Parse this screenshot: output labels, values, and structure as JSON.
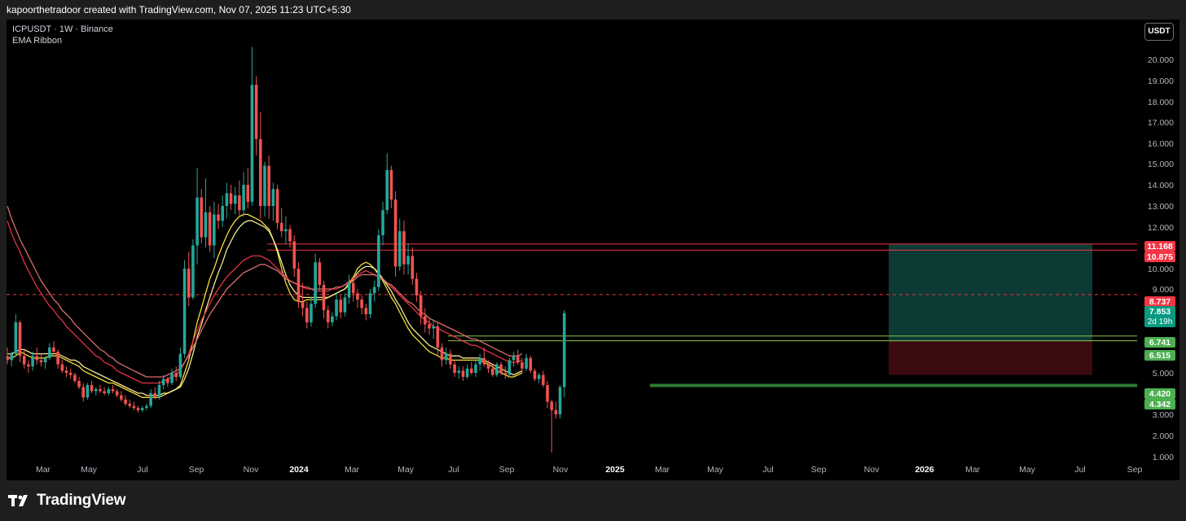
{
  "header": {
    "attribution": "kapoorthetradoor created with TradingView.com, Nov 07, 2025 11:23 UTC+5:30"
  },
  "legend": {
    "symbol_line": "ICPUSDT · 1W · Binance",
    "indicator": "EMA Ribbon"
  },
  "unit_button": "USDT",
  "footer": {
    "brand": "TradingView"
  },
  "colors": {
    "up": "#26a69a",
    "down": "#ef5350",
    "ema_fast": "#ffeb3b",
    "ema_fast2": "#fff59d",
    "ema_slow": "#f23645",
    "ema_slow2": "#e57373",
    "level_red": "#f23645",
    "level_green": "#4caf50",
    "target_zone": "#0c3a34",
    "stop_zone": "#3b0b10",
    "support_band": "#2e7d32"
  },
  "chart_data": {
    "type": "candlestick",
    "symbol": "ICPUSDT",
    "timeframe": "1W",
    "exchange": "Binance",
    "y_ticks": [
      20,
      19,
      18,
      17,
      16,
      15,
      14,
      13,
      12,
      11,
      10,
      9,
      5,
      3,
      2,
      1
    ],
    "y_tick_labels": [
      "20.000",
      "19.000",
      "18.000",
      "17.000",
      "16.000",
      "15.000",
      "14.000",
      "13.000",
      "12.000",
      "11.000",
      "10.000",
      "9.000",
      "5.000",
      "3.000",
      "2.000",
      "1.000"
    ],
    "x_ticks": [
      "Mar",
      "May",
      "Jul",
      "Sep",
      "Nov",
      "2024",
      "Mar",
      "May",
      "Jul",
      "Sep",
      "Nov",
      "2025",
      "Mar",
      "May",
      "Jul",
      "Sep",
      "Nov",
      "2026",
      "Mar",
      "May",
      "Jul",
      "Sep"
    ],
    "x_bold": [
      false,
      false,
      false,
      false,
      false,
      true,
      false,
      false,
      false,
      false,
      false,
      true,
      false,
      false,
      false,
      false,
      false,
      true,
      false,
      false,
      false,
      false
    ],
    "price_labels": [
      {
        "text": "11.168",
        "kind": "red"
      },
      {
        "text": "10.875",
        "kind": "red"
      },
      {
        "text": "8.737",
        "kind": "red"
      },
      {
        "text": "7.853",
        "sub": "2d 19h",
        "kind": "teal"
      },
      {
        "text": "6.741",
        "kind": "green"
      },
      {
        "text": "6.515",
        "kind": "green"
      },
      {
        "text": "4.420",
        "kind": "green"
      },
      {
        "text": "4.342",
        "kind": "green"
      }
    ],
    "levels": {
      "resistance": [
        11.168,
        10.875
      ],
      "dashed": 8.737,
      "mid": [
        6.741,
        6.515
      ],
      "support": [
        4.42,
        4.342
      ]
    },
    "position": {
      "entry": 6.515,
      "target": 11.168,
      "stop": 4.9
    },
    "candles": [
      [
        5.8,
        6.2,
        5.4,
        5.6
      ],
      [
        5.6,
        6.0,
        5.3,
        5.9
      ],
      [
        5.9,
        7.8,
        5.8,
        7.4
      ],
      [
        7.4,
        7.5,
        5.5,
        5.8
      ],
      [
        5.8,
        6.1,
        5.2,
        5.4
      ],
      [
        5.4,
        5.6,
        5.0,
        5.3
      ],
      [
        5.3,
        6.0,
        5.1,
        5.8
      ],
      [
        5.8,
        6.2,
        5.4,
        5.6
      ],
      [
        5.6,
        5.9,
        5.3,
        5.5
      ],
      [
        5.5,
        5.8,
        5.2,
        5.7
      ],
      [
        5.7,
        6.4,
        5.6,
        6.2
      ],
      [
        6.2,
        6.5,
        5.9,
        6.0
      ],
      [
        6.0,
        6.1,
        5.2,
        5.4
      ],
      [
        5.4,
        5.6,
        5.0,
        5.1
      ],
      [
        5.1,
        5.3,
        4.8,
        5.0
      ],
      [
        5.0,
        5.2,
        4.7,
        4.9
      ],
      [
        4.9,
        5.0,
        4.5,
        4.6
      ],
      [
        4.6,
        4.8,
        4.2,
        4.3
      ],
      [
        4.3,
        4.5,
        3.6,
        3.8
      ],
      [
        3.8,
        4.5,
        3.7,
        4.4
      ],
      [
        4.4,
        4.6,
        4.0,
        4.1
      ],
      [
        4.1,
        4.3,
        3.9,
        4.2
      ],
      [
        4.2,
        4.4,
        4.0,
        4.1
      ],
      [
        4.1,
        4.3,
        3.9,
        4.0
      ],
      [
        4.0,
        4.3,
        3.9,
        4.2
      ],
      [
        4.2,
        4.4,
        4.0,
        4.1
      ],
      [
        4.1,
        4.2,
        3.8,
        3.9
      ],
      [
        3.9,
        4.1,
        3.6,
        3.7
      ],
      [
        3.7,
        3.9,
        3.4,
        3.5
      ],
      [
        3.5,
        3.7,
        3.3,
        3.4
      ],
      [
        3.4,
        3.6,
        3.2,
        3.3
      ],
      [
        3.3,
        3.4,
        3.1,
        3.2
      ],
      [
        3.2,
        3.4,
        3.1,
        3.3
      ],
      [
        3.3,
        3.5,
        3.2,
        3.4
      ],
      [
        3.4,
        4.2,
        3.3,
        4.0
      ],
      [
        4.0,
        4.3,
        3.7,
        3.8
      ],
      [
        3.8,
        4.6,
        3.7,
        4.4
      ],
      [
        4.4,
        4.9,
        4.2,
        4.7
      ],
      [
        4.7,
        4.8,
        4.3,
        4.5
      ],
      [
        4.5,
        5.2,
        4.4,
        5.0
      ],
      [
        5.0,
        5.3,
        4.6,
        4.8
      ],
      [
        4.8,
        6.2,
        4.7,
        5.9
      ],
      [
        5.9,
        10.4,
        5.7,
        10.0
      ],
      [
        10.0,
        10.8,
        8.2,
        8.6
      ],
      [
        8.6,
        11.4,
        8.5,
        11.1
      ],
      [
        11.1,
        14.8,
        10.2,
        13.4
      ],
      [
        13.4,
        13.8,
        11.2,
        11.5
      ],
      [
        11.5,
        14.3,
        11.0,
        12.7
      ],
      [
        12.7,
        13.0,
        10.8,
        11.1
      ],
      [
        11.1,
        13.2,
        10.5,
        12.6
      ],
      [
        12.6,
        13.1,
        11.9,
        12.3
      ],
      [
        12.3,
        13.5,
        12.0,
        13.0
      ],
      [
        13.0,
        14.1,
        12.4,
        13.6
      ],
      [
        13.6,
        14.0,
        12.8,
        13.1
      ],
      [
        13.1,
        13.9,
        12.6,
        13.5
      ],
      [
        13.5,
        14.2,
        12.5,
        12.8
      ],
      [
        12.8,
        14.6,
        12.5,
        14.0
      ],
      [
        14.0,
        14.8,
        12.9,
        13.2
      ],
      [
        13.2,
        20.6,
        13.0,
        18.8
      ],
      [
        18.8,
        19.2,
        15.4,
        16.2
      ],
      [
        16.2,
        17.5,
        12.4,
        13.0
      ],
      [
        13.0,
        15.1,
        12.5,
        14.9
      ],
      [
        14.9,
        15.4,
        12.4,
        13.0
      ],
      [
        13.0,
        14.1,
        12.3,
        13.8
      ],
      [
        13.8,
        14.0,
        11.9,
        12.2
      ],
      [
        12.2,
        12.9,
        11.5,
        11.8
      ],
      [
        11.8,
        12.5,
        11.2,
        11.9
      ],
      [
        11.9,
        12.1,
        11.0,
        11.3
      ],
      [
        11.3,
        11.6,
        9.6,
        10.0
      ],
      [
        10.0,
        10.3,
        8.1,
        8.4
      ],
      [
        8.4,
        9.3,
        7.7,
        8.1
      ],
      [
        8.1,
        8.4,
        7.1,
        7.4
      ],
      [
        7.4,
        8.6,
        7.2,
        8.3
      ],
      [
        8.3,
        10.7,
        8.1,
        10.3
      ],
      [
        10.3,
        10.5,
        8.9,
        9.2
      ],
      [
        9.2,
        9.4,
        7.6,
        8.0
      ],
      [
        8.0,
        8.2,
        7.1,
        7.4
      ],
      [
        7.4,
        7.9,
        7.2,
        7.7
      ],
      [
        7.7,
        8.8,
        7.5,
        8.5
      ],
      [
        8.5,
        8.7,
        7.6,
        7.9
      ],
      [
        7.9,
        8.8,
        7.7,
        8.6
      ],
      [
        8.6,
        9.7,
        8.3,
        9.3
      ],
      [
        9.3,
        9.6,
        8.4,
        8.8
      ],
      [
        8.8,
        9.0,
        8.1,
        8.5
      ],
      [
        8.5,
        8.7,
        7.8,
        8.1
      ],
      [
        8.1,
        8.3,
        7.5,
        7.8
      ],
      [
        7.8,
        9.0,
        7.6,
        8.8
      ],
      [
        8.8,
        9.4,
        8.4,
        9.1
      ],
      [
        9.1,
        11.9,
        8.9,
        11.6
      ],
      [
        11.6,
        13.2,
        11.1,
        12.8
      ],
      [
        12.8,
        15.5,
        12.6,
        14.7
      ],
      [
        14.7,
        14.9,
        12.9,
        13.3
      ],
      [
        13.3,
        13.7,
        9.6,
        10.1
      ],
      [
        10.1,
        12.4,
        9.9,
        11.8
      ],
      [
        11.8,
        12.3,
        9.7,
        10.2
      ],
      [
        10.2,
        11.2,
        9.7,
        10.6
      ],
      [
        10.6,
        11.0,
        9.2,
        9.5
      ],
      [
        9.5,
        9.8,
        8.4,
        8.7
      ],
      [
        8.7,
        8.9,
        7.3,
        7.7
      ],
      [
        7.7,
        8.1,
        6.9,
        7.3
      ],
      [
        7.3,
        7.6,
        6.8,
        7.1
      ],
      [
        7.1,
        7.5,
        6.6,
        7.2
      ],
      [
        7.2,
        7.4,
        5.8,
        6.2
      ],
      [
        6.2,
        6.4,
        5.3,
        5.6
      ],
      [
        5.6,
        6.2,
        5.4,
        5.9
      ],
      [
        5.9,
        6.1,
        5.2,
        5.4
      ],
      [
        5.4,
        5.6,
        4.8,
        5.0
      ],
      [
        5.0,
        5.3,
        4.7,
        5.1
      ],
      [
        5.1,
        5.3,
        4.6,
        4.8
      ],
      [
        4.8,
        5.4,
        4.7,
        5.2
      ],
      [
        5.2,
        5.5,
        4.9,
        5.0
      ],
      [
        5.0,
        5.6,
        4.8,
        5.4
      ],
      [
        5.4,
        5.9,
        5.1,
        5.7
      ],
      [
        5.7,
        6.2,
        5.3,
        5.4
      ],
      [
        5.4,
        5.6,
        5.0,
        5.2
      ],
      [
        5.2,
        5.4,
        4.8,
        4.9
      ],
      [
        4.9,
        5.5,
        4.8,
        5.4
      ],
      [
        5.4,
        5.5,
        4.9,
        5.0
      ],
      [
        5.0,
        5.3,
        4.7,
        4.9
      ],
      [
        4.9,
        5.7,
        4.8,
        5.6
      ],
      [
        5.6,
        6.0,
        5.3,
        5.8
      ],
      [
        5.8,
        6.1,
        5.4,
        5.5
      ],
      [
        5.5,
        5.7,
        5.0,
        5.2
      ],
      [
        5.2,
        5.9,
        5.1,
        5.7
      ],
      [
        5.7,
        5.8,
        5.0,
        5.1
      ],
      [
        5.1,
        5.2,
        4.6,
        4.7
      ],
      [
        4.7,
        5.0,
        4.5,
        4.9
      ],
      [
        4.9,
        5.1,
        4.3,
        4.4
      ],
      [
        4.4,
        4.6,
        3.3,
        3.6
      ],
      [
        3.6,
        3.7,
        1.2,
        3.2
      ],
      [
        3.2,
        3.6,
        2.8,
        3.0
      ],
      [
        3.0,
        4.4,
        2.8,
        4.3
      ],
      [
        4.3,
        8.0,
        3.8,
        7.853
      ]
    ],
    "ema_ribbon": [
      {
        "name": "",
        "color": "#ffeb3b",
        "values": [
          5.7,
          5.7,
          5.8,
          6.0,
          5.9,
          5.8,
          5.7,
          5.7,
          5.7,
          5.7,
          5.8,
          5.8,
          5.8,
          5.7,
          5.6,
          5.5,
          5.4,
          5.3,
          5.1,
          5.0,
          4.9,
          4.8,
          4.7,
          4.6,
          4.5,
          4.5,
          4.4,
          4.3,
          4.2,
          4.1,
          4.0,
          3.9,
          3.8,
          3.8,
          3.8,
          3.8,
          3.8,
          3.9,
          4.0,
          4.1,
          4.2,
          4.4,
          5.0,
          5.6,
          6.5,
          7.4,
          8.1,
          8.8,
          9.5,
          10.0,
          10.6,
          11.1,
          11.6,
          12.0,
          12.3,
          12.5,
          12.6,
          12.6,
          12.5,
          12.4,
          12.3,
          12.1,
          11.9,
          11.4,
          10.8,
          10.0,
          9.3,
          8.8,
          8.5,
          8.4,
          8.4,
          8.5,
          8.5,
          8.5,
          8.5,
          8.5,
          8.6,
          8.7,
          8.8,
          8.9,
          9.0,
          9.3,
          9.6,
          10.0,
          10.2,
          10.3,
          10.2,
          10.0,
          9.7,
          9.4,
          9.0,
          8.6,
          8.3,
          7.9,
          7.5,
          7.1,
          6.8,
          6.6,
          6.4,
          6.2,
          6.0,
          5.9,
          5.8,
          5.7,
          5.7,
          5.6,
          5.6,
          5.6,
          5.6,
          5.6,
          5.6,
          5.6,
          5.6,
          5.5,
          5.4,
          5.3,
          5.1,
          5.0,
          4.9,
          4.8,
          4.8,
          4.9,
          5.0
        ]
      },
      {
        "name": "",
        "color": "#fff59d",
        "values": [
          5.9,
          5.9,
          6.0,
          6.1,
          6.1,
          6.0,
          5.9,
          5.9,
          5.9,
          5.9,
          5.9,
          5.9,
          5.9,
          5.8,
          5.7,
          5.6,
          5.6,
          5.5,
          5.3,
          5.2,
          5.1,
          5.0,
          4.9,
          4.8,
          4.7,
          4.6,
          4.5,
          4.4,
          4.3,
          4.2,
          4.1,
          4.0,
          4.0,
          3.9,
          3.9,
          3.9,
          3.9,
          4.0,
          4.0,
          4.1,
          4.2,
          4.3,
          4.7,
          5.2,
          5.9,
          6.7,
          7.3,
          8.0,
          8.6,
          9.2,
          9.8,
          10.3,
          10.9,
          11.3,
          11.7,
          12.0,
          12.2,
          12.3,
          12.3,
          12.2,
          12.1,
          12.0,
          11.8,
          11.4,
          10.9,
          10.3,
          9.7,
          9.2,
          8.9,
          8.7,
          8.6,
          8.6,
          8.6,
          8.6,
          8.6,
          8.6,
          8.6,
          8.7,
          8.8,
          8.9,
          9.0,
          9.2,
          9.5,
          9.8,
          10.0,
          10.1,
          10.1,
          10.0,
          9.8,
          9.5,
          9.2,
          8.9,
          8.5,
          8.2,
          7.8,
          7.4,
          7.1,
          6.9,
          6.7,
          6.5,
          6.3,
          6.2,
          6.1,
          6.0,
          5.9,
          5.8,
          5.8,
          5.8,
          5.7,
          5.7,
          5.7,
          5.7,
          5.7,
          5.6,
          5.5,
          5.4,
          5.3,
          5.2,
          5.1,
          5.0,
          4.9,
          5.0,
          5.1
        ]
      },
      {
        "name": "",
        "color": "#f23645",
        "values": [
          12.3,
          11.7,
          11.2,
          10.8,
          10.3,
          9.9,
          9.5,
          9.1,
          8.8,
          8.5,
          8.2,
          8.0,
          7.7,
          7.5,
          7.2,
          7.0,
          6.8,
          6.6,
          6.4,
          6.2,
          6.0,
          5.8,
          5.7,
          5.5,
          5.4,
          5.3,
          5.1,
          5.0,
          4.9,
          4.8,
          4.7,
          4.6,
          4.5,
          4.5,
          4.5,
          4.5,
          4.5,
          4.6,
          4.7,
          4.8,
          4.9,
          5.1,
          5.5,
          5.9,
          6.5,
          7.0,
          7.5,
          7.9,
          8.3,
          8.7,
          9.0,
          9.3,
          9.6,
          9.8,
          10.0,
          10.2,
          10.4,
          10.5,
          10.6,
          10.6,
          10.6,
          10.5,
          10.4,
          10.2,
          10.0,
          9.8,
          9.6,
          9.4,
          9.3,
          9.2,
          9.1,
          9.0,
          9.0,
          8.9,
          8.9,
          8.9,
          8.9,
          9.0,
          9.0,
          9.1,
          9.2,
          9.4,
          9.5,
          9.7,
          9.8,
          9.9,
          9.8,
          9.7,
          9.6,
          9.5,
          9.3,
          9.1,
          8.9,
          8.7,
          8.5,
          8.3,
          8.1,
          7.9,
          7.7,
          7.5,
          7.4,
          7.2,
          7.1,
          7.0,
          6.9,
          6.8,
          6.7,
          6.6,
          6.5,
          6.4,
          6.3,
          6.3,
          6.2,
          6.1,
          6.0,
          5.9,
          5.8,
          5.7,
          5.6,
          5.5,
          5.5,
          5.5,
          5.6
        ]
      },
      {
        "name": "",
        "color": "#e57373",
        "values": [
          13.0,
          12.4,
          11.9,
          11.4,
          11.0,
          10.6,
          10.2,
          9.8,
          9.4,
          9.1,
          8.8,
          8.5,
          8.3,
          8.0,
          7.8,
          7.6,
          7.3,
          7.1,
          6.9,
          6.7,
          6.5,
          6.3,
          6.1,
          6.0,
          5.8,
          5.7,
          5.5,
          5.4,
          5.3,
          5.2,
          5.1,
          5.0,
          4.9,
          4.8,
          4.8,
          4.8,
          4.8,
          4.8,
          4.9,
          5.0,
          5.1,
          5.2,
          5.5,
          5.8,
          6.2,
          6.6,
          7.0,
          7.4,
          7.8,
          8.1,
          8.4,
          8.7,
          9.0,
          9.2,
          9.4,
          9.6,
          9.8,
          9.9,
          10.0,
          10.1,
          10.2,
          10.2,
          10.1,
          10.0,
          9.9,
          9.7,
          9.5,
          9.4,
          9.3,
          9.2,
          9.1,
          9.1,
          9.0,
          9.0,
          9.0,
          9.0,
          9.0,
          9.0,
          9.1,
          9.1,
          9.2,
          9.3,
          9.4,
          9.6,
          9.7,
          9.7,
          9.7,
          9.7,
          9.6,
          9.5,
          9.3,
          9.2,
          9.0,
          8.8,
          8.6,
          8.4,
          8.3,
          8.1,
          7.9,
          7.8,
          7.6,
          7.5,
          7.4,
          7.3,
          7.2,
          7.1,
          7.0,
          6.9,
          6.8,
          6.7,
          6.6,
          6.6,
          6.5,
          6.4,
          6.3,
          6.2,
          6.1,
          6.0,
          5.9,
          5.8,
          5.8,
          5.8,
          5.9
        ]
      }
    ],
    "grid": false,
    "legend_position": "top-left"
  }
}
